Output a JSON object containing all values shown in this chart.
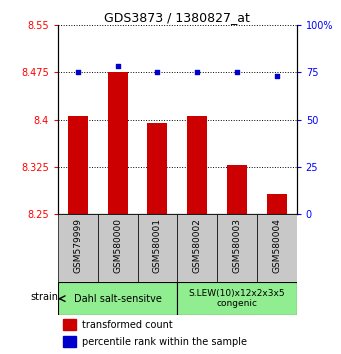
{
  "title": "GDS3873 / 1380827_at",
  "samples": [
    "GSM579999",
    "GSM580000",
    "GSM580001",
    "GSM580002",
    "GSM580003",
    "GSM580004"
  ],
  "red_values": [
    8.405,
    8.475,
    8.395,
    8.405,
    8.328,
    8.282
  ],
  "blue_values": [
    75,
    78,
    75,
    75,
    75,
    73
  ],
  "ylim_left": [
    8.25,
    8.55
  ],
  "ylim_right": [
    0,
    100
  ],
  "yticks_left": [
    8.25,
    8.325,
    8.4,
    8.475,
    8.55
  ],
  "yticks_right": [
    0,
    25,
    50,
    75,
    100
  ],
  "ytick_labels_left": [
    "8.25",
    "8.325",
    "8.4",
    "8.475",
    "8.55"
  ],
  "ytick_labels_right": [
    "0",
    "25",
    "50",
    "75",
    "100%"
  ],
  "group1_label": "Dahl salt-sensitve",
  "group2_label": "S.LEW(10)x12x2x3x5\ncongenic",
  "group1_indices": [
    0,
    1,
    2
  ],
  "group2_indices": [
    3,
    4,
    5
  ],
  "group1_color": "#90EE90",
  "group2_color": "#90EE90",
  "bar_color": "#CC0000",
  "dot_color": "#0000CC",
  "legend_red": "transformed count",
  "legend_blue": "percentile rank within the sample",
  "strain_label": "strain",
  "xtick_bg": "#C8C8C8",
  "plot_bg": "#FFFFFF"
}
